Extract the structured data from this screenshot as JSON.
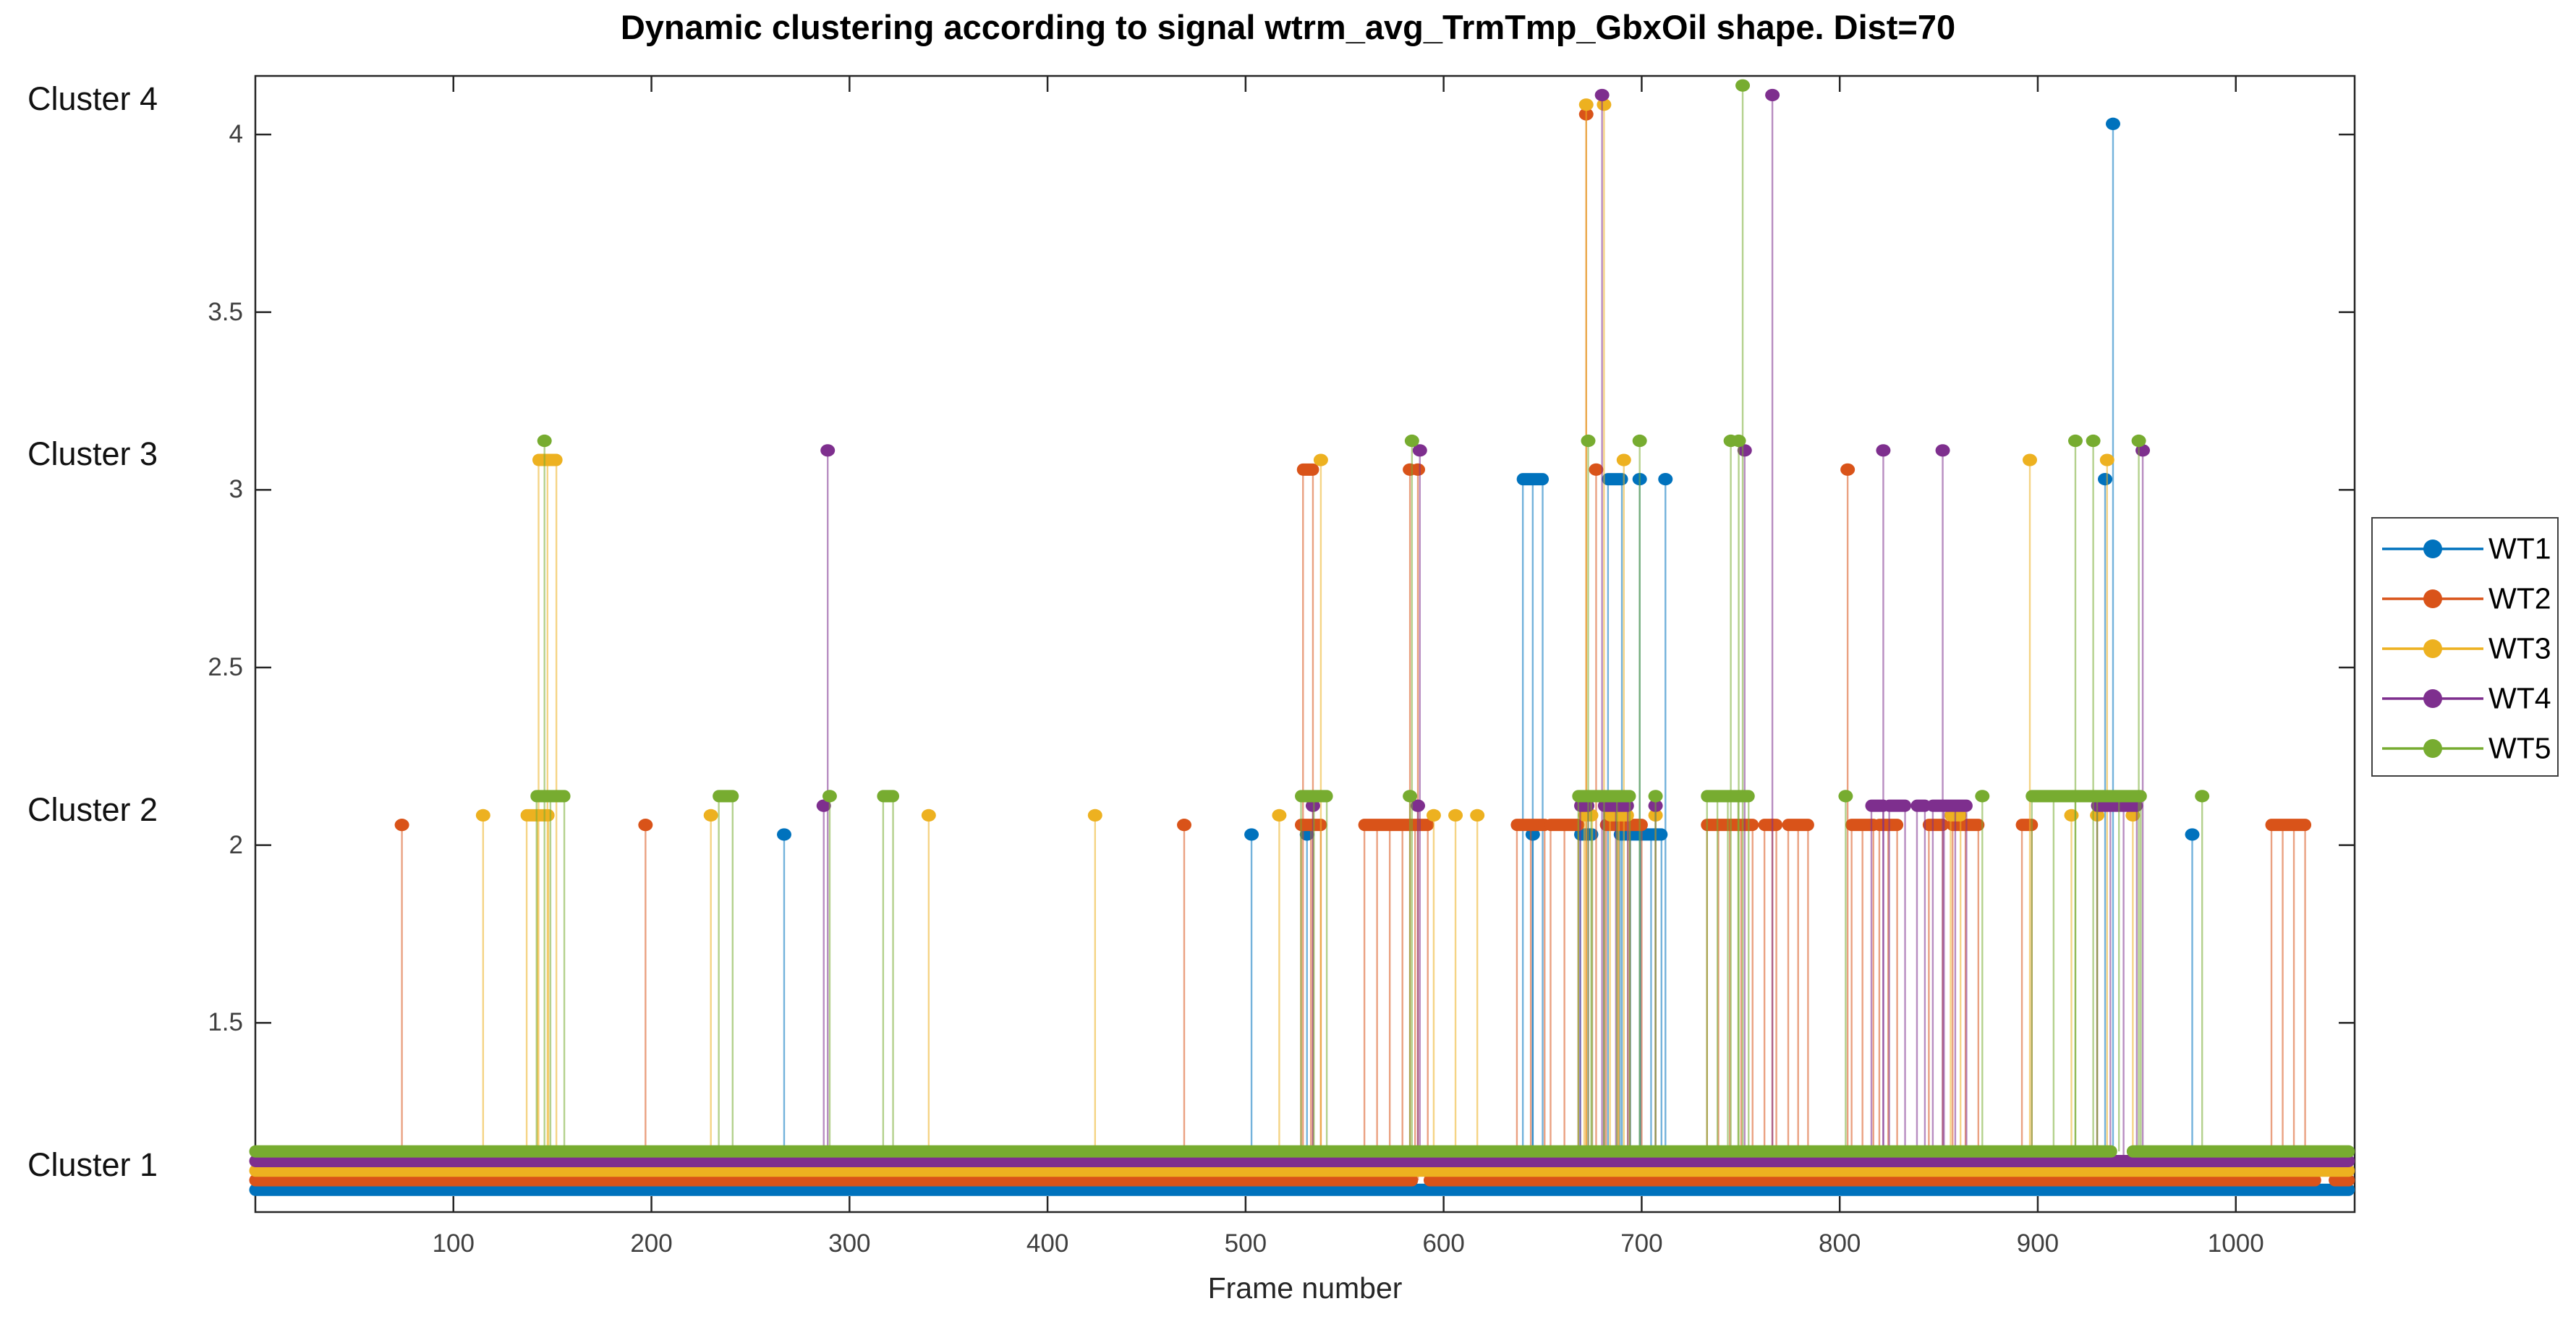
{
  "figure": {
    "title": "Dynamic clustering according to signal wtrm_avg_TrmTmp_GbxOil shape. Dist=70",
    "xlabel": "Frame number"
  },
  "chart_data": {
    "type": "line",
    "subtype": "stem-cluster-timeline",
    "title": "Dynamic clustering according to signal wtrm_avg_TrmTmp_GbxOil shape. Dist=70",
    "xlabel": "Frame number",
    "ylabel": "",
    "xlim": [
      0,
      1060
    ],
    "ylim": [
      0.97,
      4.17
    ],
    "grid": false,
    "xticks": [
      100,
      200,
      300,
      400,
      500,
      600,
      700,
      800,
      900,
      1000
    ],
    "yticks": [
      {
        "v": 1.5,
        "label": "1.5"
      },
      {
        "v": 2.0,
        "label": "2"
      },
      {
        "v": 2.5,
        "label": "2.5"
      },
      {
        "v": 3.0,
        "label": "3"
      },
      {
        "v": 3.5,
        "label": "3.5"
      },
      {
        "v": 4.0,
        "label": "4"
      }
    ],
    "cluster_labels": [
      {
        "v": 1.1,
        "label": "Cluster 1"
      },
      {
        "v": 2.1,
        "label": "Cluster 2"
      },
      {
        "v": 3.1,
        "label": "Cluster 3"
      },
      {
        "v": 4.1,
        "label": "Cluster 4"
      }
    ],
    "legend": {
      "position": "right",
      "entries": [
        "WT1",
        "WT2",
        "WT3",
        "WT4",
        "WT5"
      ]
    },
    "series_note": "Each turbine keeps cluster 1 for most frames (thick band at bottom). points/segments list frames where it jumps to cluster 2, 3 or 4. A small per-series vertical offset separates the five turbines.",
    "series": [
      {
        "name": "WT1",
        "color": "#0072BD",
        "offset": 0.03,
        "baseline_cluster": 1,
        "baseline_range": [
          0,
          1057
        ],
        "baseline_gaps": [],
        "cluster2_points": [
          267,
          503,
          531,
          645,
          978
        ],
        "cluster2_segments": [
          [
            669,
            675
          ],
          [
            689,
            710
          ]
        ],
        "cluster3_points": [
          699,
          712,
          934
        ],
        "cluster3_segments": [
          [
            640,
            650
          ],
          [
            683,
            690
          ]
        ],
        "cluster4_points": [
          938
        ],
        "cluster4_segments": []
      },
      {
        "name": "WT2",
        "color": "#D95319",
        "offset": 0.057,
        "baseline_cluster": 1,
        "baseline_range": [
          0,
          1057
        ],
        "baseline_gaps": [
          [
            584,
            593
          ],
          [
            1040,
            1050
          ]
        ],
        "cluster2_points": [
          74,
          197,
          469,
          766
        ],
        "cluster2_segments": [
          [
            528,
            538
          ],
          [
            560,
            592
          ],
          [
            637,
            651
          ],
          [
            654,
            668
          ],
          [
            682,
            700
          ],
          [
            733,
            756
          ],
          [
            762,
            768
          ],
          [
            774,
            784
          ],
          [
            806,
            817
          ],
          [
            820,
            829
          ],
          [
            845,
            852
          ],
          [
            857,
            870
          ],
          [
            892,
            897
          ],
          [
            1018,
            1035
          ]
        ],
        "cluster3_points": [
          583,
          587,
          677,
          804
        ],
        "cluster3_segments": [
          [
            529,
            534
          ]
        ],
        "cluster4_points": [
          672
        ],
        "cluster4_segments": []
      },
      {
        "name": "WT3",
        "color": "#EDB120",
        "offset": 0.084,
        "baseline_cluster": 1,
        "baseline_range": [
          0,
          1057
        ],
        "baseline_gaps": [],
        "cluster2_points": [
          115,
          230,
          340,
          424,
          517,
          595,
          606,
          617,
          707,
          917,
          930,
          948
        ],
        "cluster2_segments": [
          [
            137,
            148
          ],
          [
            671,
            675
          ],
          [
            684,
            693
          ],
          [
            856,
            861
          ]
        ],
        "cluster3_points": [
          538,
          691,
          896,
          935
        ],
        "cluster3_segments": [
          [
            143,
            152
          ]
        ],
        "cluster4_points": [
          672,
          681
        ],
        "cluster4_segments": []
      },
      {
        "name": "WT4",
        "color": "#7E2F8E",
        "offset": 0.111,
        "baseline_cluster": 1,
        "baseline_range": [
          0,
          1057
        ],
        "baseline_gaps": [],
        "cluster2_points": [
          287,
          534,
          587,
          707
        ],
        "cluster2_segments": [
          [
            669,
            673
          ],
          [
            681,
            693
          ],
          [
            816,
            822
          ],
          [
            825,
            833
          ],
          [
            839,
            843
          ],
          [
            847,
            864
          ],
          [
            930,
            950
          ]
        ],
        "cluster3_points": [
          289,
          588,
          752,
          822,
          852,
          953
        ],
        "cluster3_segments": [],
        "cluster4_points": [
          680,
          766
        ],
        "cluster4_segments": []
      },
      {
        "name": "WT5",
        "color": "#77AC30",
        "offset": 0.138,
        "baseline_cluster": 1,
        "baseline_range": [
          0,
          1057
        ],
        "baseline_gaps": [
          [
            937,
            948
          ]
        ],
        "cluster2_points": [
          290,
          583,
          707,
          803,
          872,
          983
        ],
        "cluster2_segments": [
          [
            142,
            156
          ],
          [
            234,
            241
          ],
          [
            317,
            322
          ],
          [
            528,
            541
          ],
          [
            668,
            694
          ],
          [
            733,
            754
          ],
          [
            897,
            952
          ]
        ],
        "cluster3_points": [
          146,
          584,
          673,
          699,
          745,
          749,
          919,
          928,
          951
        ],
        "cluster3_segments": [],
        "cluster4_points": [
          751
        ],
        "cluster4_segments": []
      }
    ]
  }
}
